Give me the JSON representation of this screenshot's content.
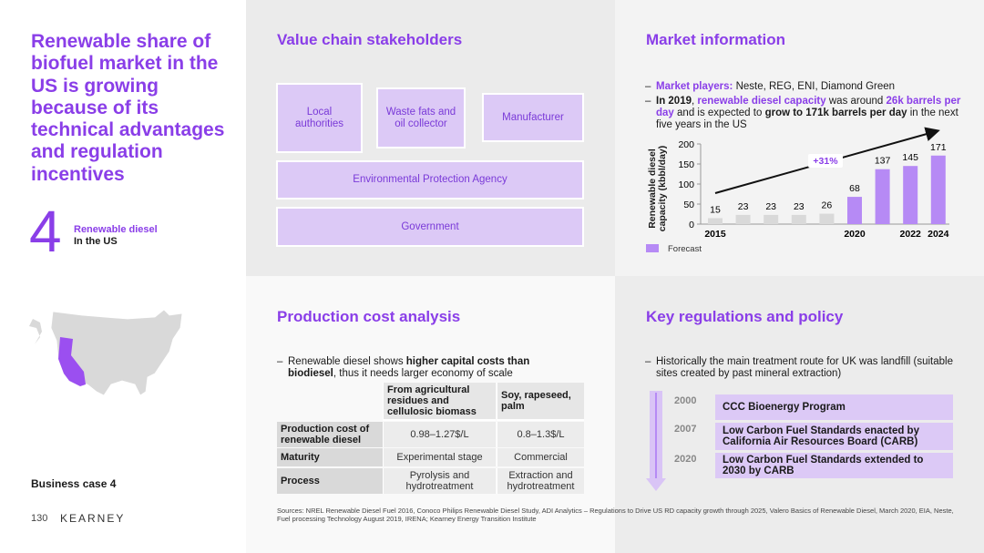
{
  "title": "Renewable share of biofuel market in the US is growing because of its technical advantages and regulation incentives",
  "big_number": "4",
  "big_number_label": "Renewable diesel",
  "big_number_sub": "In the US",
  "business_case": "Business case 4",
  "page_number": "130",
  "logo": "KEARNEY",
  "value_chain": {
    "title": "Value chain stakeholders",
    "nodes": [
      {
        "label": "Local authorities"
      },
      {
        "label": "Waste fats and oil collector"
      },
      {
        "label": "Manufacturer"
      },
      {
        "label": "Environmental Protection Agency"
      },
      {
        "label": "Government"
      }
    ]
  },
  "market": {
    "title": "Market information",
    "bullets": [
      [
        {
          "text": "Market players:",
          "style": "accent"
        },
        {
          "text": " Neste, REG, ENI, Diamond Green"
        }
      ],
      [
        {
          "text": "In 2019",
          "style": "bold"
        },
        {
          "text": ", "
        },
        {
          "text": "renewable diesel capacity",
          "style": "accent"
        },
        {
          "text": " was around "
        },
        {
          "text": "26k barrels per day",
          "style": "accent"
        },
        {
          "text": " and is expected to "
        },
        {
          "text": "grow to 171k barrels per day",
          "style": "bold"
        },
        {
          "text": " in the next five years in the US"
        }
      ]
    ]
  },
  "chart_data": {
    "type": "bar",
    "ylabel": "Renewable diesel capacity (kbbl/day)",
    "categories": [
      "2015",
      null,
      null,
      null,
      null,
      "2020",
      null,
      "2022",
      "2024"
    ],
    "values": [
      15,
      23,
      23,
      23,
      26,
      68,
      137,
      145,
      171
    ],
    "colors": [
      "#d9d9d9",
      "#d9d9d9",
      "#d9d9d9",
      "#d9d9d9",
      "#d9d9d9",
      "#b68af5",
      "#b68af5",
      "#b68af5",
      "#b68af5"
    ],
    "ylim": [
      0,
      200
    ],
    "yticks": [
      0,
      50,
      100,
      150,
      200
    ],
    "annotation": "+31%",
    "legend": {
      "label": "Forecast",
      "color": "#b68af5"
    }
  },
  "production": {
    "title": "Production cost analysis",
    "bullet": [
      {
        "text": "Renewable diesel shows "
      },
      {
        "text": "higher capital costs than biodiesel",
        "style": "bold"
      },
      {
        "text": ", thus it needs larger economy of scale"
      }
    ],
    "table": {
      "columns": [
        "From agricultural residues and cellulosic biomass",
        "Soy, rapeseed, palm"
      ],
      "rows": [
        {
          "label": "Production cost of renewable diesel",
          "cells": [
            "0.98–1.27$/L",
            "0.8–1.3$/L"
          ]
        },
        {
          "label": "Maturity",
          "cells": [
            "Experimental stage",
            "Commercial"
          ]
        },
        {
          "label": "Process",
          "cells": [
            "Pyrolysis and hydrotreatment",
            "Extraction and hydrotreatment"
          ]
        }
      ]
    }
  },
  "regulations": {
    "title": "Key regulations and policy",
    "bullet": "Historically the main treatment route for UK was landfill (suitable sites created by past mineral extraction)",
    "timeline": [
      {
        "year": "2000",
        "text": "CCC Bioenergy Program"
      },
      {
        "year": "2007",
        "text": "Low Carbon Fuel Standards enacted by California Air Resources Board (CARB)"
      },
      {
        "year": "2020",
        "text": "Low Carbon Fuel Standards extended to 2030 by CARB"
      }
    ]
  },
  "sources": "Sources: NREL Renewable Diesel Fuel 2016, Conoco Philips Renewable Diesel Study, ADI Analytics – Regulations to Drive US RD capacity growth through 2025, Valero Basics of Renewable Diesel, March 2020, EIA, Neste, Fuel processing Technology August 2019, IRENA; Kearney Energy Transition Institute"
}
